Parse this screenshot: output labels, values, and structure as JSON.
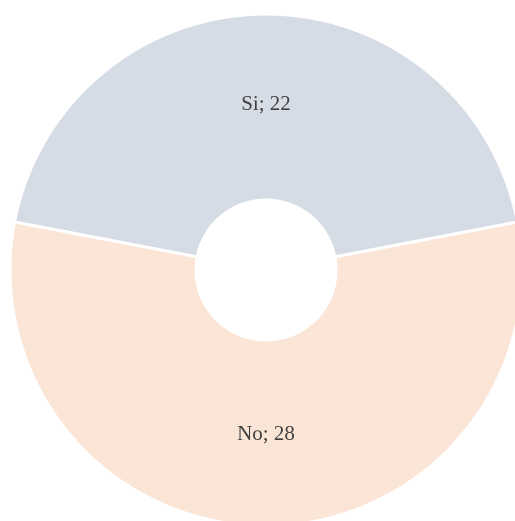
{
  "chart_data": {
    "type": "donut",
    "values": [
      22,
      28
    ],
    "value_labels": [
      "Si; 22",
      "No; 28"
    ],
    "colors": [
      "#d6dce5",
      "#fbe5d6"
    ]
  }
}
